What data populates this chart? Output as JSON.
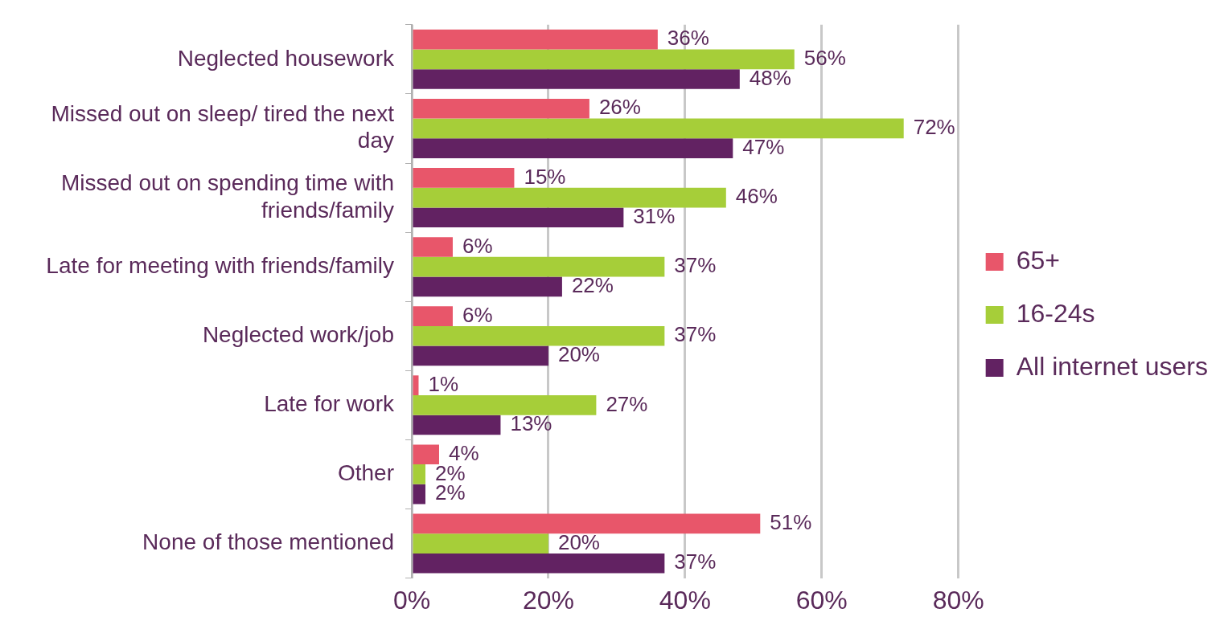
{
  "chart_data": {
    "type": "bar",
    "orientation": "horizontal",
    "categories": [
      "Neglected housework",
      "Missed out on sleep/ tired the next day",
      "Missed out on spending time with friends/family",
      "Late for meeting with friends/family",
      "Neglected work/job",
      "Late for work",
      "Other",
      "None of those mentioned"
    ],
    "series": [
      {
        "name": "65+",
        "color": "#e8566a",
        "values": [
          36,
          26,
          15,
          6,
          6,
          1,
          4,
          51
        ],
        "value_labels": [
          "36%",
          "26%",
          "15%",
          "6%",
          "6%",
          "1%",
          "4%",
          "51%"
        ]
      },
      {
        "name": "16-24s",
        "color": "#a6ce39",
        "values": [
          56,
          72,
          46,
          37,
          37,
          27,
          2,
          20
        ],
        "value_labels": [
          "56%",
          "72%",
          "46%",
          "37%",
          "37%",
          "27%",
          "2%",
          "20%"
        ]
      },
      {
        "name": "All internet users",
        "color": "#622262",
        "values": [
          48,
          47,
          31,
          22,
          20,
          13,
          2,
          37
        ],
        "value_labels": [
          "48%",
          "47%",
          "31%",
          "22%",
          "20%",
          "13%",
          "2%",
          "37%"
        ]
      }
    ],
    "xlim": [
      0,
      80
    ],
    "xticks": [
      {
        "value": 0,
        "label": "0%"
      },
      {
        "value": 20,
        "label": "20%"
      },
      {
        "value": 40,
        "label": "40%"
      },
      {
        "value": 60,
        "label": "60%"
      },
      {
        "value": 80,
        "label": "80%"
      }
    ],
    "grid": "x",
    "legend": "right"
  }
}
